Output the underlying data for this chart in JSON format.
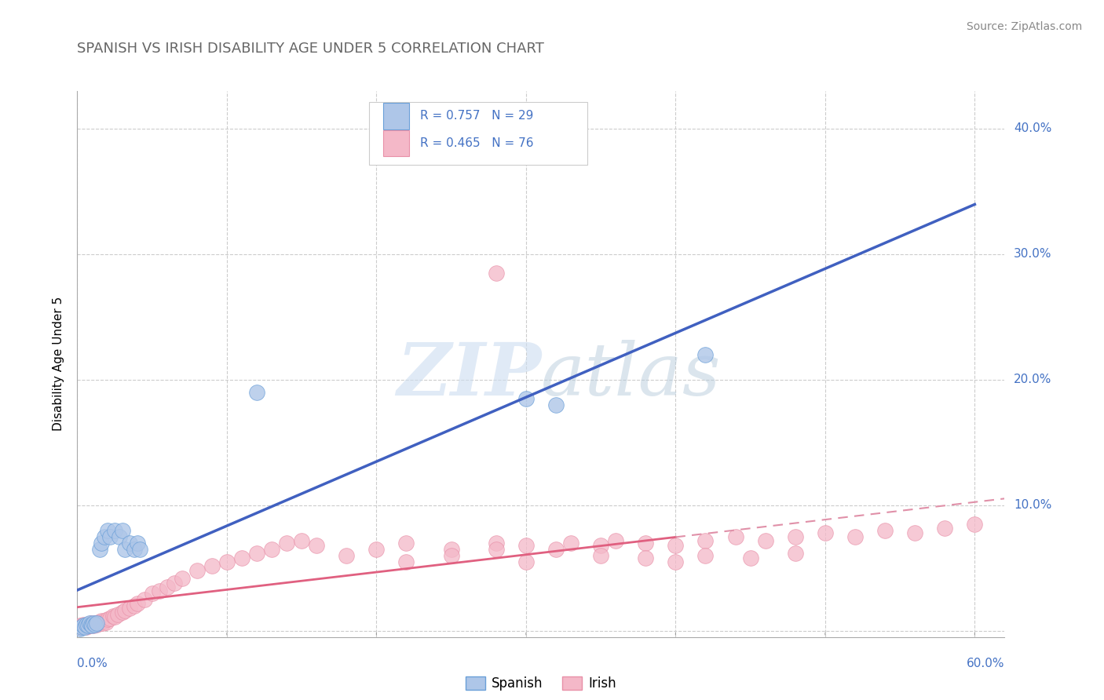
{
  "title": "SPANISH VS IRISH DISABILITY AGE UNDER 5 CORRELATION CHART",
  "source": "Source: ZipAtlas.com",
  "ylabel": "Disability Age Under 5",
  "xlim": [
    0.0,
    0.62
  ],
  "ylim": [
    -0.005,
    0.43
  ],
  "ytick_vals": [
    0.0,
    0.1,
    0.2,
    0.3,
    0.4
  ],
  "ytick_labels": [
    "",
    "10.0%",
    "20.0%",
    "30.0%",
    "40.0%"
  ],
  "spanish_color": "#aec6e8",
  "irish_color": "#f4b8c8",
  "spanish_edge_color": "#6a9fd8",
  "irish_edge_color": "#e890a8",
  "spanish_line_color": "#4060c0",
  "irish_line_color": "#e06080",
  "irish_dash_color": "#e090a8",
  "legend_text_color": "#4472c4",
  "title_color": "#666666",
  "source_color": "#888888",
  "watermark_color": "#ccddf0",
  "grid_color": "#cccccc",
  "background_color": "#ffffff",
  "spanish_x": [
    0.002,
    0.003,
    0.004,
    0.005,
    0.006,
    0.007,
    0.008,
    0.009,
    0.01,
    0.011,
    0.012,
    0.013,
    0.015,
    0.016,
    0.018,
    0.02,
    0.022,
    0.025,
    0.028,
    0.03,
    0.032,
    0.035,
    0.038,
    0.04,
    0.042,
    0.12,
    0.3,
    0.32,
    0.42
  ],
  "spanish_y": [
    0.002,
    0.003,
    0.004,
    0.003,
    0.005,
    0.004,
    0.006,
    0.005,
    0.004,
    0.006,
    0.005,
    0.006,
    0.065,
    0.07,
    0.075,
    0.08,
    0.075,
    0.08,
    0.075,
    0.08,
    0.065,
    0.07,
    0.065,
    0.07,
    0.065,
    0.19,
    0.185,
    0.18,
    0.22
  ],
  "irish_x": [
    0.001,
    0.002,
    0.003,
    0.004,
    0.005,
    0.006,
    0.007,
    0.008,
    0.009,
    0.01,
    0.011,
    0.012,
    0.013,
    0.014,
    0.015,
    0.016,
    0.017,
    0.018,
    0.019,
    0.02,
    0.022,
    0.024,
    0.025,
    0.027,
    0.03,
    0.032,
    0.035,
    0.038,
    0.04,
    0.045,
    0.05,
    0.055,
    0.06,
    0.065,
    0.07,
    0.08,
    0.09,
    0.1,
    0.11,
    0.12,
    0.13,
    0.14,
    0.15,
    0.16,
    0.18,
    0.2,
    0.22,
    0.25,
    0.28,
    0.3,
    0.32,
    0.33,
    0.35,
    0.36,
    0.38,
    0.4,
    0.42,
    0.44,
    0.46,
    0.48,
    0.5,
    0.52,
    0.54,
    0.56,
    0.58,
    0.6,
    0.22,
    0.25,
    0.28,
    0.3,
    0.35,
    0.38,
    0.4,
    0.42,
    0.45,
    0.48
  ],
  "irish_y": [
    0.003,
    0.004,
    0.003,
    0.005,
    0.004,
    0.003,
    0.005,
    0.004,
    0.006,
    0.005,
    0.004,
    0.006,
    0.005,
    0.007,
    0.006,
    0.008,
    0.006,
    0.008,
    0.007,
    0.009,
    0.01,
    0.012,
    0.011,
    0.013,
    0.015,
    0.016,
    0.018,
    0.02,
    0.022,
    0.025,
    0.03,
    0.032,
    0.035,
    0.038,
    0.042,
    0.048,
    0.052,
    0.055,
    0.058,
    0.062,
    0.065,
    0.07,
    0.072,
    0.068,
    0.06,
    0.065,
    0.07,
    0.065,
    0.07,
    0.068,
    0.065,
    0.07,
    0.068,
    0.072,
    0.07,
    0.068,
    0.072,
    0.075,
    0.072,
    0.075,
    0.078,
    0.075,
    0.08,
    0.078,
    0.082,
    0.085,
    0.055,
    0.06,
    0.065,
    0.055,
    0.06,
    0.058,
    0.055,
    0.06,
    0.058,
    0.062
  ],
  "irish_outlier_x": [
    0.28
  ],
  "irish_outlier_y": [
    0.285
  ]
}
